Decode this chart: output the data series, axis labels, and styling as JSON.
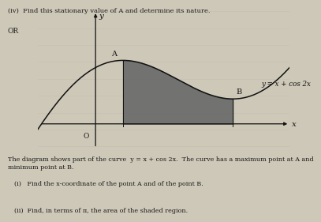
{
  "curve_label": "y = x + cos 2x",
  "x_label": "x",
  "y_label": "y",
  "x_A": 0.2618,
  "x_B": 1.309,
  "shade_x_start": 0.2618,
  "shade_x_end": 1.309,
  "x_plot_min": -0.55,
  "x_plot_max": 1.85,
  "y_plot_min": -0.45,
  "y_plot_max": 2.0,
  "shade_color": "#666666",
  "shade_alpha": 0.88,
  "curve_color": "#111111",
  "axis_color": "#111111",
  "bg_color": "#cec8b8",
  "grid_color": "#b8b3a3",
  "label_A": "A",
  "label_B": "B",
  "label_O": "O",
  "line1": "(iv)  Find this stationary value of A and determine its nature.",
  "line_or": "OR",
  "line_desc": "The diagram shows part of the curve  y = x + cos 2x.  The curve has a maximum point at A and\nminimum point at B.",
  "line_i": "(i)   Find the x-coordinate of the point A and of the point B.",
  "line_ii": "(ii)  Find, in terms of π, the area of the shaded region.",
  "fontsize_main": 6.0,
  "fontsize_label": 7.0,
  "fontsize_axis": 7.5
}
